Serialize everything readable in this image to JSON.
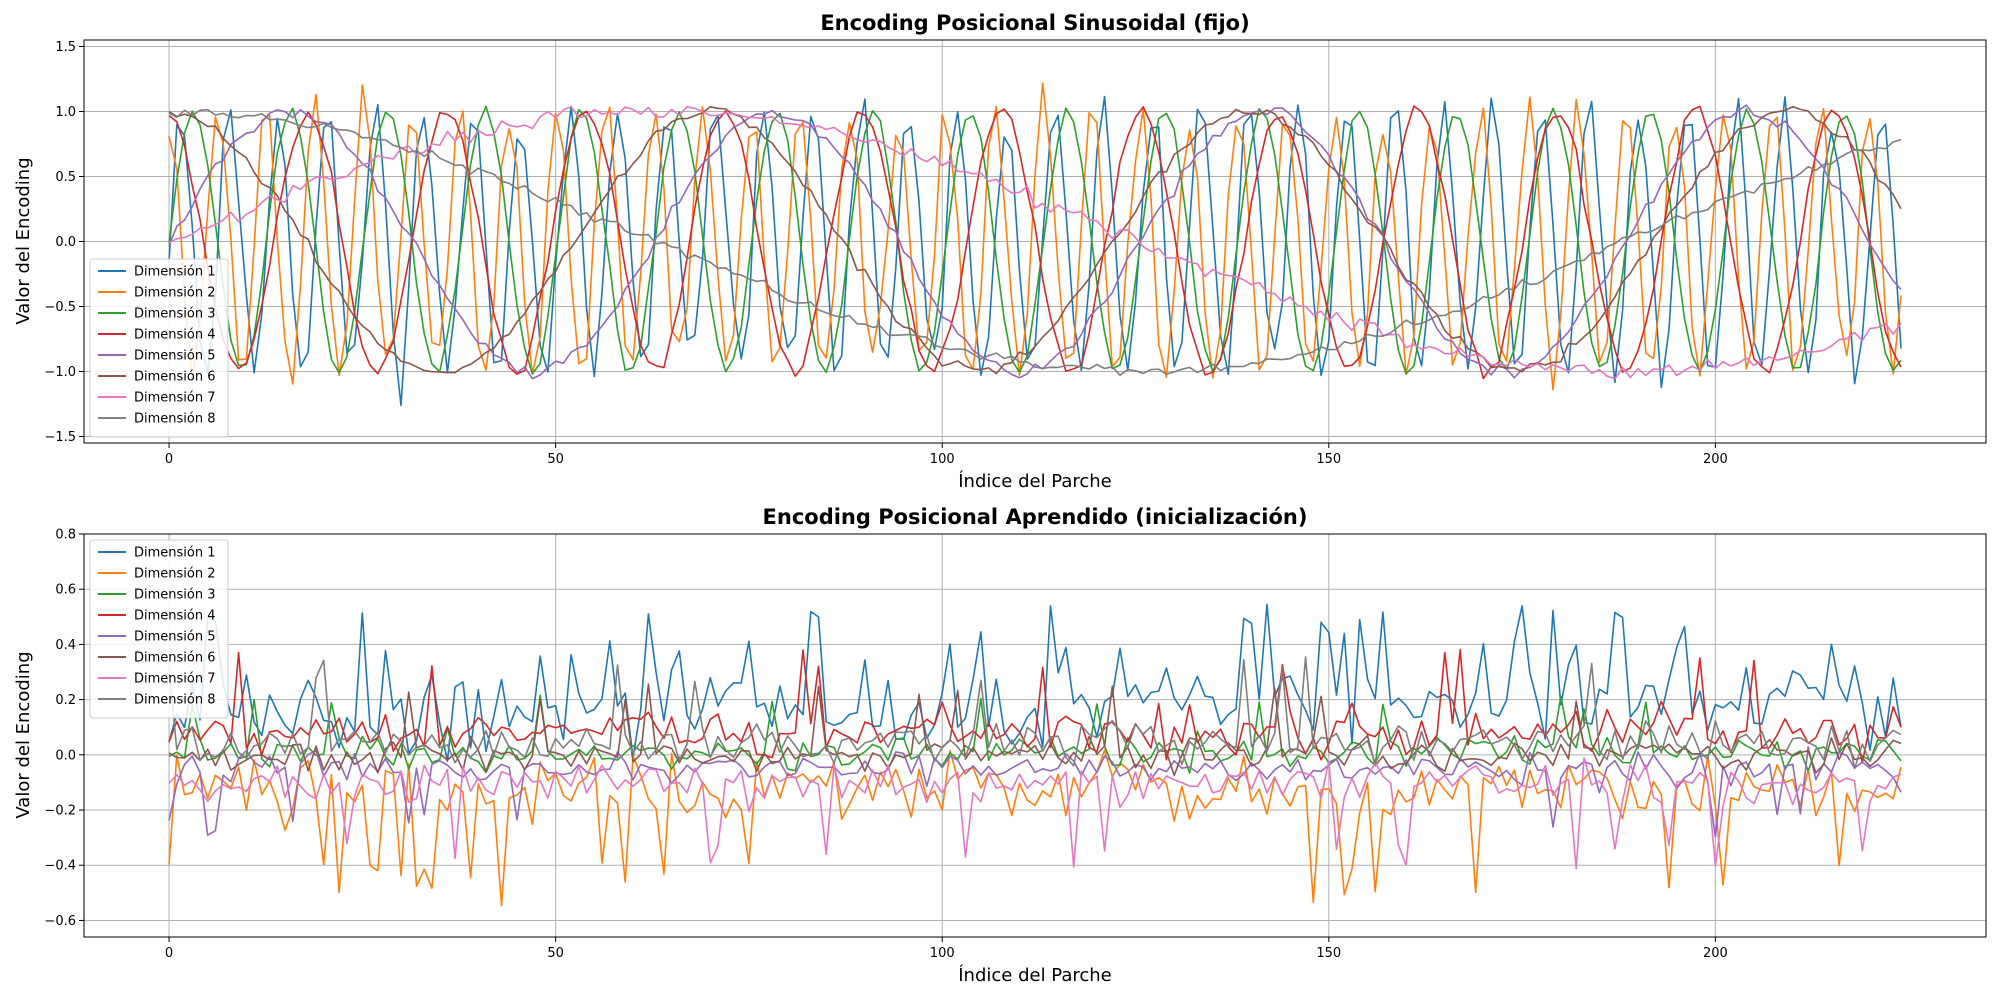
{
  "chart_data": [
    {
      "type": "line",
      "title": "Encoding Posicional Sinusoidal (fijo)",
      "xlabel": "Índice del Parche",
      "ylabel": "Valor del Encoding",
      "xlim": [
        -11,
        235
      ],
      "ylim": [
        -1.55,
        1.55
      ],
      "xticks": [
        "0",
        "50",
        "100",
        "150",
        "200"
      ],
      "yticks": [
        "−1.5",
        "−1.0",
        "−0.5",
        "0.0",
        "0.5",
        "1.0",
        "1.5"
      ],
      "grid": true,
      "legend_position": "lower-left",
      "series": [
        {
          "name": "Dimensión 1",
          "color": "#1f77b4",
          "shape": "sin",
          "freq": 1.0,
          "phase": 0.0,
          "amp": 1.0,
          "noise": 0.18,
          "seed": 11,
          "x_end": 224
        },
        {
          "name": "Dimensión 2",
          "color": "#ff7f0e",
          "shape": "cos",
          "freq": 1.0,
          "phase": 0.0,
          "amp": 1.0,
          "noise": 0.18,
          "seed": 12,
          "x_end": 224
        },
        {
          "name": "Dimensión 3",
          "color": "#2ca02c",
          "shape": "sin",
          "freq": 0.5,
          "phase": 0.0,
          "amp": 1.0,
          "noise": 0.04,
          "seed": 13,
          "x_end": 224
        },
        {
          "name": "Dimensión 4",
          "color": "#d62728",
          "shape": "cos",
          "freq": 0.35,
          "phase": 0.0,
          "amp": 1.0,
          "noise": 0.06,
          "seed": 14,
          "x_end": 224
        },
        {
          "name": "Dimensión 5",
          "color": "#9467bd",
          "shape": "sin",
          "freq": 0.1,
          "phase": 0.0,
          "amp": 1.0,
          "noise": 0.05,
          "seed": 15,
          "x_end": 224
        },
        {
          "name": "Dimensión 6",
          "color": "#8c564b",
          "shape": "cos",
          "freq": 0.09,
          "phase": 0.0,
          "amp": 1.0,
          "noise": 0.05,
          "seed": 16,
          "x_end": 224
        },
        {
          "name": "Dimensión 7",
          "color": "#e377c2",
          "shape": "sin",
          "freq": 0.025,
          "phase": 0.0,
          "amp": 1.0,
          "noise": 0.06,
          "seed": 17,
          "x_end": 224
        },
        {
          "name": "Dimensión 8",
          "color": "#7f7f7f",
          "shape": "cos",
          "freq": 0.025,
          "phase": 0.0,
          "amp": 1.0,
          "noise": 0.04,
          "seed": 18,
          "x_end": 224
        }
      ]
    },
    {
      "type": "line",
      "title": "Encoding Posicional Aprendido (inicialización)",
      "xlabel": "Índice del Parche",
      "ylabel": "Valor del Encoding",
      "xlim": [
        -11,
        235
      ],
      "ylim": [
        -0.66,
        0.8
      ],
      "xticks": [
        "0",
        "50",
        "100",
        "150",
        "200"
      ],
      "yticks": [
        "−0.6",
        "−0.4",
        "−0.2",
        "0.0",
        "0.2",
        "0.4",
        "0.6",
        "0.8"
      ],
      "grid": true,
      "legend_position": "upper-left",
      "series": [
        {
          "name": "Dimensión 1",
          "color": "#1f77b4",
          "shape": "noise",
          "mean": 0.18,
          "spread": 0.17,
          "spike": 0.55,
          "spike_prob": 0.12,
          "seed": 21,
          "x_end": 224
        },
        {
          "name": "Dimensión 2",
          "color": "#ff7f0e",
          "shape": "noise",
          "mean": -0.12,
          "spread": 0.12,
          "spike": -0.55,
          "spike_prob": 0.08,
          "seed": 22,
          "x_end": 224
        },
        {
          "name": "Dimensión 3",
          "color": "#2ca02c",
          "shape": "noise",
          "mean": 0.01,
          "spread": 0.06,
          "spike": 0.22,
          "spike_prob": 0.05,
          "seed": 23,
          "x_end": 224
        },
        {
          "name": "Dimensión 4",
          "color": "#d62728",
          "shape": "noise",
          "mean": 0.08,
          "spread": 0.08,
          "spike": 0.4,
          "spike_prob": 0.05,
          "seed": 24,
          "x_end": 224
        },
        {
          "name": "Dimensión 5",
          "color": "#9467bd",
          "shape": "noise",
          "mean": -0.05,
          "spread": 0.06,
          "spike": -0.3,
          "spike_prob": 0.05,
          "seed": 25,
          "x_end": 224
        },
        {
          "name": "Dimensión 6",
          "color": "#8c564b",
          "shape": "noise",
          "mean": 0.0,
          "spread": 0.06,
          "spike": 0.26,
          "spike_prob": 0.04,
          "seed": 26,
          "x_end": 224
        },
        {
          "name": "Dimensión 7",
          "color": "#e377c2",
          "shape": "noise",
          "mean": -0.1,
          "spread": 0.08,
          "spike": -0.42,
          "spike_prob": 0.07,
          "seed": 27,
          "x_end": 224
        },
        {
          "name": "Dimensión 8",
          "color": "#7f7f7f",
          "shape": "noise",
          "mean": 0.04,
          "spread": 0.07,
          "spike": 0.36,
          "spike_prob": 0.05,
          "seed": 28,
          "x_end": 224
        }
      ]
    }
  ]
}
